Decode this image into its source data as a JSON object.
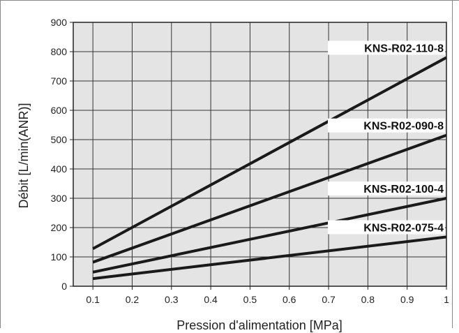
{
  "chart_data": {
    "type": "line",
    "xlabel": "Pression d'alimentation [MPa]",
    "ylabel": "Débit [L/min(ANR)]",
    "xlim": [
      0.05,
      1.0
    ],
    "ylim": [
      0,
      900
    ],
    "x_ticks": [
      "0.1",
      "0.2",
      "0.3",
      "0.4",
      "0.5",
      "0.6",
      "0.7",
      "0.8",
      "0.9",
      "1"
    ],
    "y_ticks": [
      "0",
      "100",
      "200",
      "300",
      "400",
      "500",
      "600",
      "700",
      "800",
      "900"
    ],
    "grid": true,
    "legend": "none",
    "background": "#e4e4e4",
    "line_color": "#1a1a1a",
    "series": [
      {
        "name": "KNS-R02-110-8",
        "x": [
          0.1,
          1.0
        ],
        "y": [
          128,
          780
        ]
      },
      {
        "name": "KNS-R02-090-8",
        "x": [
          0.1,
          1.0
        ],
        "y": [
          82,
          515
        ]
      },
      {
        "name": "KNS-R02-100-4",
        "x": [
          0.1,
          1.0
        ],
        "y": [
          48,
          300
        ]
      },
      {
        "name": "KNS-R02-075-4",
        "x": [
          0.1,
          1.0
        ],
        "y": [
          26,
          168
        ]
      }
    ]
  }
}
